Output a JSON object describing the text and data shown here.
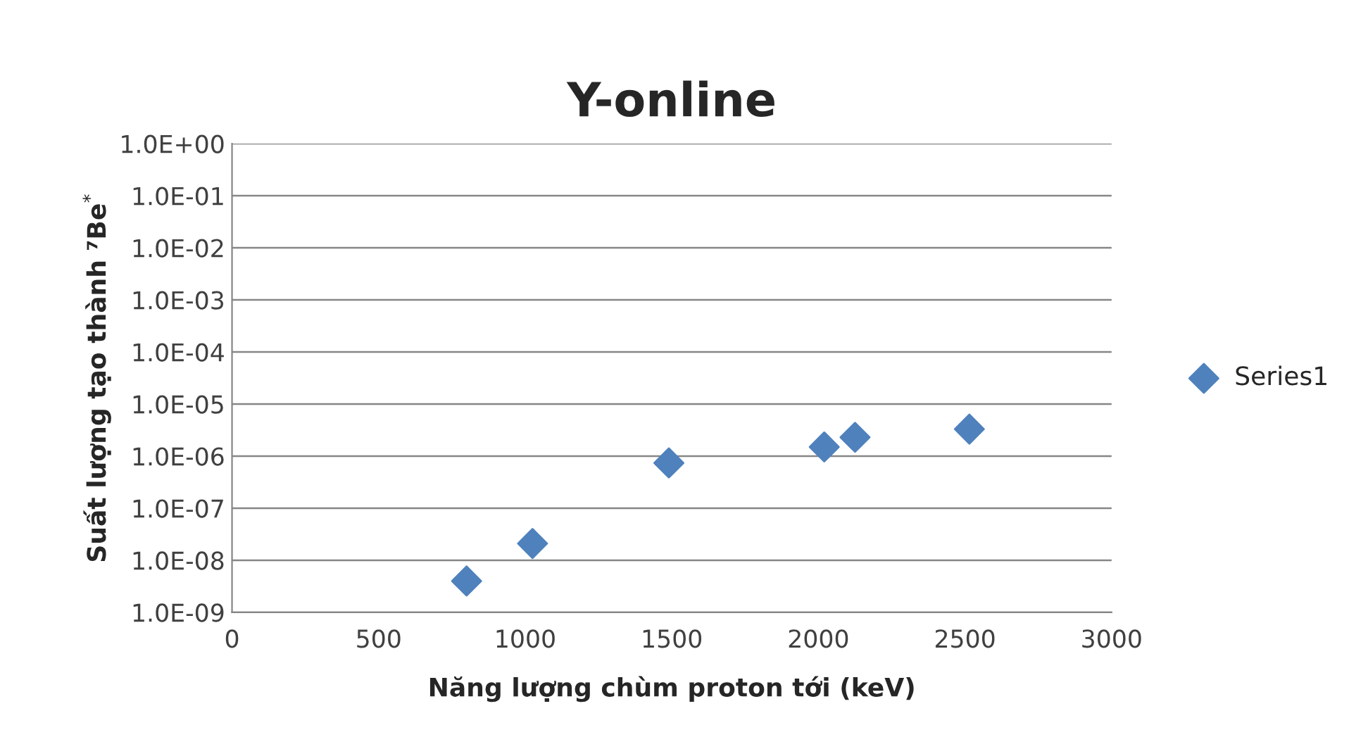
{
  "chart_data": {
    "type": "scatter",
    "title": "Y-online",
    "xlabel": "Năng lượng chùm proton tới (keV)",
    "ylabel": "Suất lượng tạo thành ⁷Be$^{*}$",
    "series": [
      {
        "name": "Series1",
        "color": "#4f81bd",
        "x": [
          800,
          1025,
          1490,
          2020,
          2125,
          2515
        ],
        "values": [
          4e-09,
          2.1e-08,
          7.4e-07,
          1.5e-06,
          2.3e-06,
          3.3e-06
        ]
      }
    ],
    "xlim": [
      0,
      3000
    ],
    "xticks": [
      0,
      500,
      1000,
      1500,
      2000,
      2500,
      3000
    ],
    "ylim": [
      1e-09,
      1
    ],
    "yticks": [
      {
        "value": 1e-09,
        "label": "1.0E-09"
      },
      {
        "value": 1e-08,
        "label": "1.0E-08"
      },
      {
        "value": 1e-07,
        "label": "1.0E-07"
      },
      {
        "value": 1e-06,
        "label": "1.0E-06"
      },
      {
        "value": 1e-05,
        "label": "1.0E-05"
      },
      {
        "value": 0.0001,
        "label": "1.0E-04"
      },
      {
        "value": 0.001,
        "label": "1.0E-03"
      },
      {
        "value": 0.01,
        "label": "1.0E-02"
      },
      {
        "value": 0.1,
        "label": "1.0E-01"
      },
      {
        "value": 1,
        "label": "1.0E+00"
      }
    ],
    "log": "y",
    "grid": "y",
    "legend": "right",
    "marker": "diamond"
  }
}
